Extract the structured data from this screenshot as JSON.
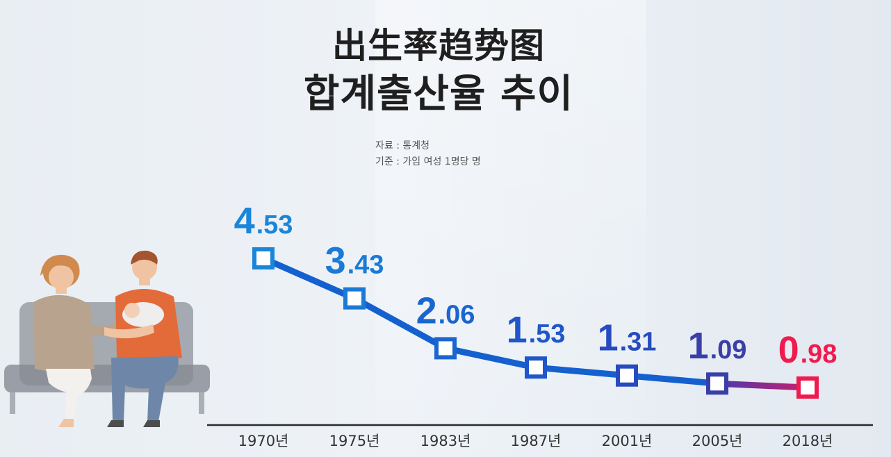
{
  "header": {
    "title_line1": "出生率趋势图",
    "title_line2": "합계출산율 추이",
    "source": "자료 : 통계청",
    "basis": "기준 : 가임 여성 1명당 명"
  },
  "chart_data": {
    "type": "line",
    "title": "합계출산율 추이",
    "categories": [
      "1970년",
      "1975년",
      "1983년",
      "1987년",
      "2001년",
      "2005년",
      "2018년"
    ],
    "series": [
      {
        "values": [
          4.53,
          3.43,
          2.06,
          1.53,
          1.31,
          1.09,
          0.98
        ],
        "value_labels": [
          "4.53",
          "3.43",
          "2.06",
          "1.53",
          "1.31",
          "1.09",
          "0.98"
        ]
      }
    ],
    "point_colors": [
      "#1a86d9",
      "#1a7ad6",
      "#1a66cf",
      "#1f56c8",
      "#274bbf",
      "#3a3fa8",
      "#ee1b4f"
    ],
    "line_color": "#1560cf",
    "end_segment_color": "#9a2a88",
    "ylim": [
      0.98,
      4.53
    ],
    "grid": false,
    "legend": "none"
  },
  "illustration": {
    "icon": "family-on-sofa-illustration"
  }
}
